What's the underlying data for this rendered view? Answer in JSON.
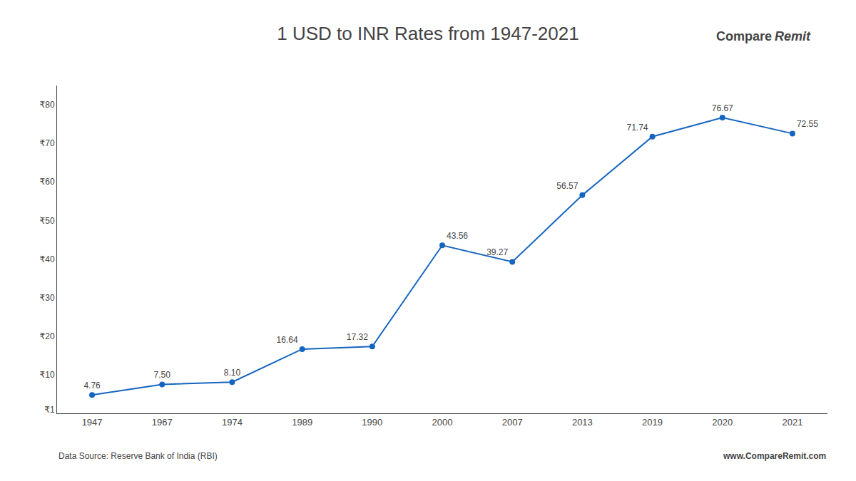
{
  "chart_data": {
    "type": "line",
    "title": "1 USD to INR Rates from 1947-2021",
    "categories": [
      "1947",
      "1967",
      "1974",
      "1989",
      "1990",
      "2000",
      "2007",
      "2013",
      "2019",
      "2020",
      "2021"
    ],
    "values": [
      4.76,
      7.5,
      8.1,
      16.64,
      17.32,
      43.56,
      39.27,
      56.57,
      71.74,
      76.67,
      72.55
    ],
    "value_labels": [
      "4.76",
      "7.50",
      "8.10",
      "16.64",
      "17.32",
      "43.56",
      "39.27",
      "56.57",
      "71.74",
      "76.67",
      "72.55"
    ],
    "data_labels": true,
    "color": "#1565c0",
    "marker": "circle",
    "line_style": "solid",
    "ylim": [
      0,
      85
    ],
    "yticks": [
      {
        "value": 1,
        "label": "₹1"
      },
      {
        "value": 10,
        "label": "₹10"
      },
      {
        "value": 20,
        "label": "₹20"
      },
      {
        "value": 30,
        "label": "₹30"
      },
      {
        "value": 40,
        "label": "₹40"
      },
      {
        "value": 50,
        "label": "₹50"
      },
      {
        "value": 60,
        "label": "₹60"
      },
      {
        "value": 70,
        "label": "₹70"
      },
      {
        "value": 80,
        "label": "₹80"
      }
    ],
    "grid": false,
    "annotations": [
      "Data Source: Reserve Bank of India (RBI)",
      "www.CompareRemit.com",
      "Compare",
      "Remit"
    ]
  }
}
